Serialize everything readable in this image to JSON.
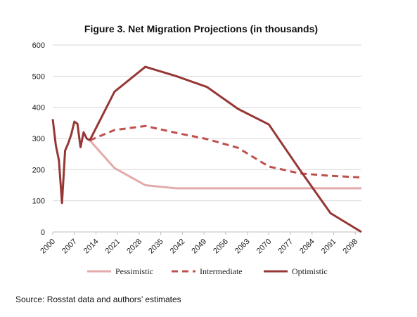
{
  "chart_data": {
    "type": "line",
    "title": "Figure 3.  Net Migration Projections (in thousands)",
    "source": "Source: Rosstat data and authors’ estimates",
    "xlabel": "",
    "ylabel": "",
    "xlim": [
      2000,
      2100
    ],
    "ylim": [
      0,
      600
    ],
    "y_ticks": [
      0,
      100,
      200,
      300,
      400,
      500,
      600
    ],
    "x_ticks": [
      "2000",
      "2007",
      "2014",
      "2021",
      "2028",
      "2035",
      "2042",
      "2049",
      "2056",
      "2063",
      "2070",
      "2077",
      "2084",
      "2091",
      "2098"
    ],
    "grid": "horizontal",
    "legend_position": "bottom",
    "colors": {
      "pessimistic": "#e3aaaa",
      "intermediate": "#c0504d",
      "optimistic": "#953735",
      "grid": "#d9d9d9",
      "axis": "#bfbfbf"
    },
    "historical": {
      "x": [
        2000,
        2001,
        2002,
        2003,
        2004,
        2005,
        2006,
        2007,
        2008,
        2009,
        2010,
        2011,
        2012
      ],
      "y": [
        362,
        278,
        230,
        93,
        261,
        284,
        313,
        354,
        347,
        272,
        320,
        300,
        294
      ]
    },
    "series": [
      {
        "name": "Pessimistic",
        "style": "solid",
        "x": [
          2012,
          2020,
          2030,
          2040,
          2050,
          2060,
          2070,
          2080,
          2090,
          2100
        ],
        "y": [
          294,
          205,
          150,
          140,
          140,
          140,
          140,
          140,
          140,
          140
        ]
      },
      {
        "name": "Intermediate",
        "style": "dashed",
        "x": [
          2012,
          2020,
          2030,
          2040,
          2050,
          2060,
          2070,
          2080,
          2090,
          2100
        ],
        "y": [
          294,
          327,
          340,
          318,
          298,
          270,
          210,
          188,
          180,
          175
        ]
      },
      {
        "name": "Optimistic",
        "style": "solid",
        "x": [
          2012,
          2020,
          2030,
          2040,
          2050,
          2060,
          2070,
          2080,
          2090,
          2100
        ],
        "y": [
          294,
          450,
          530,
          500,
          465,
          395,
          345,
          200,
          60,
          0
        ]
      }
    ]
  }
}
